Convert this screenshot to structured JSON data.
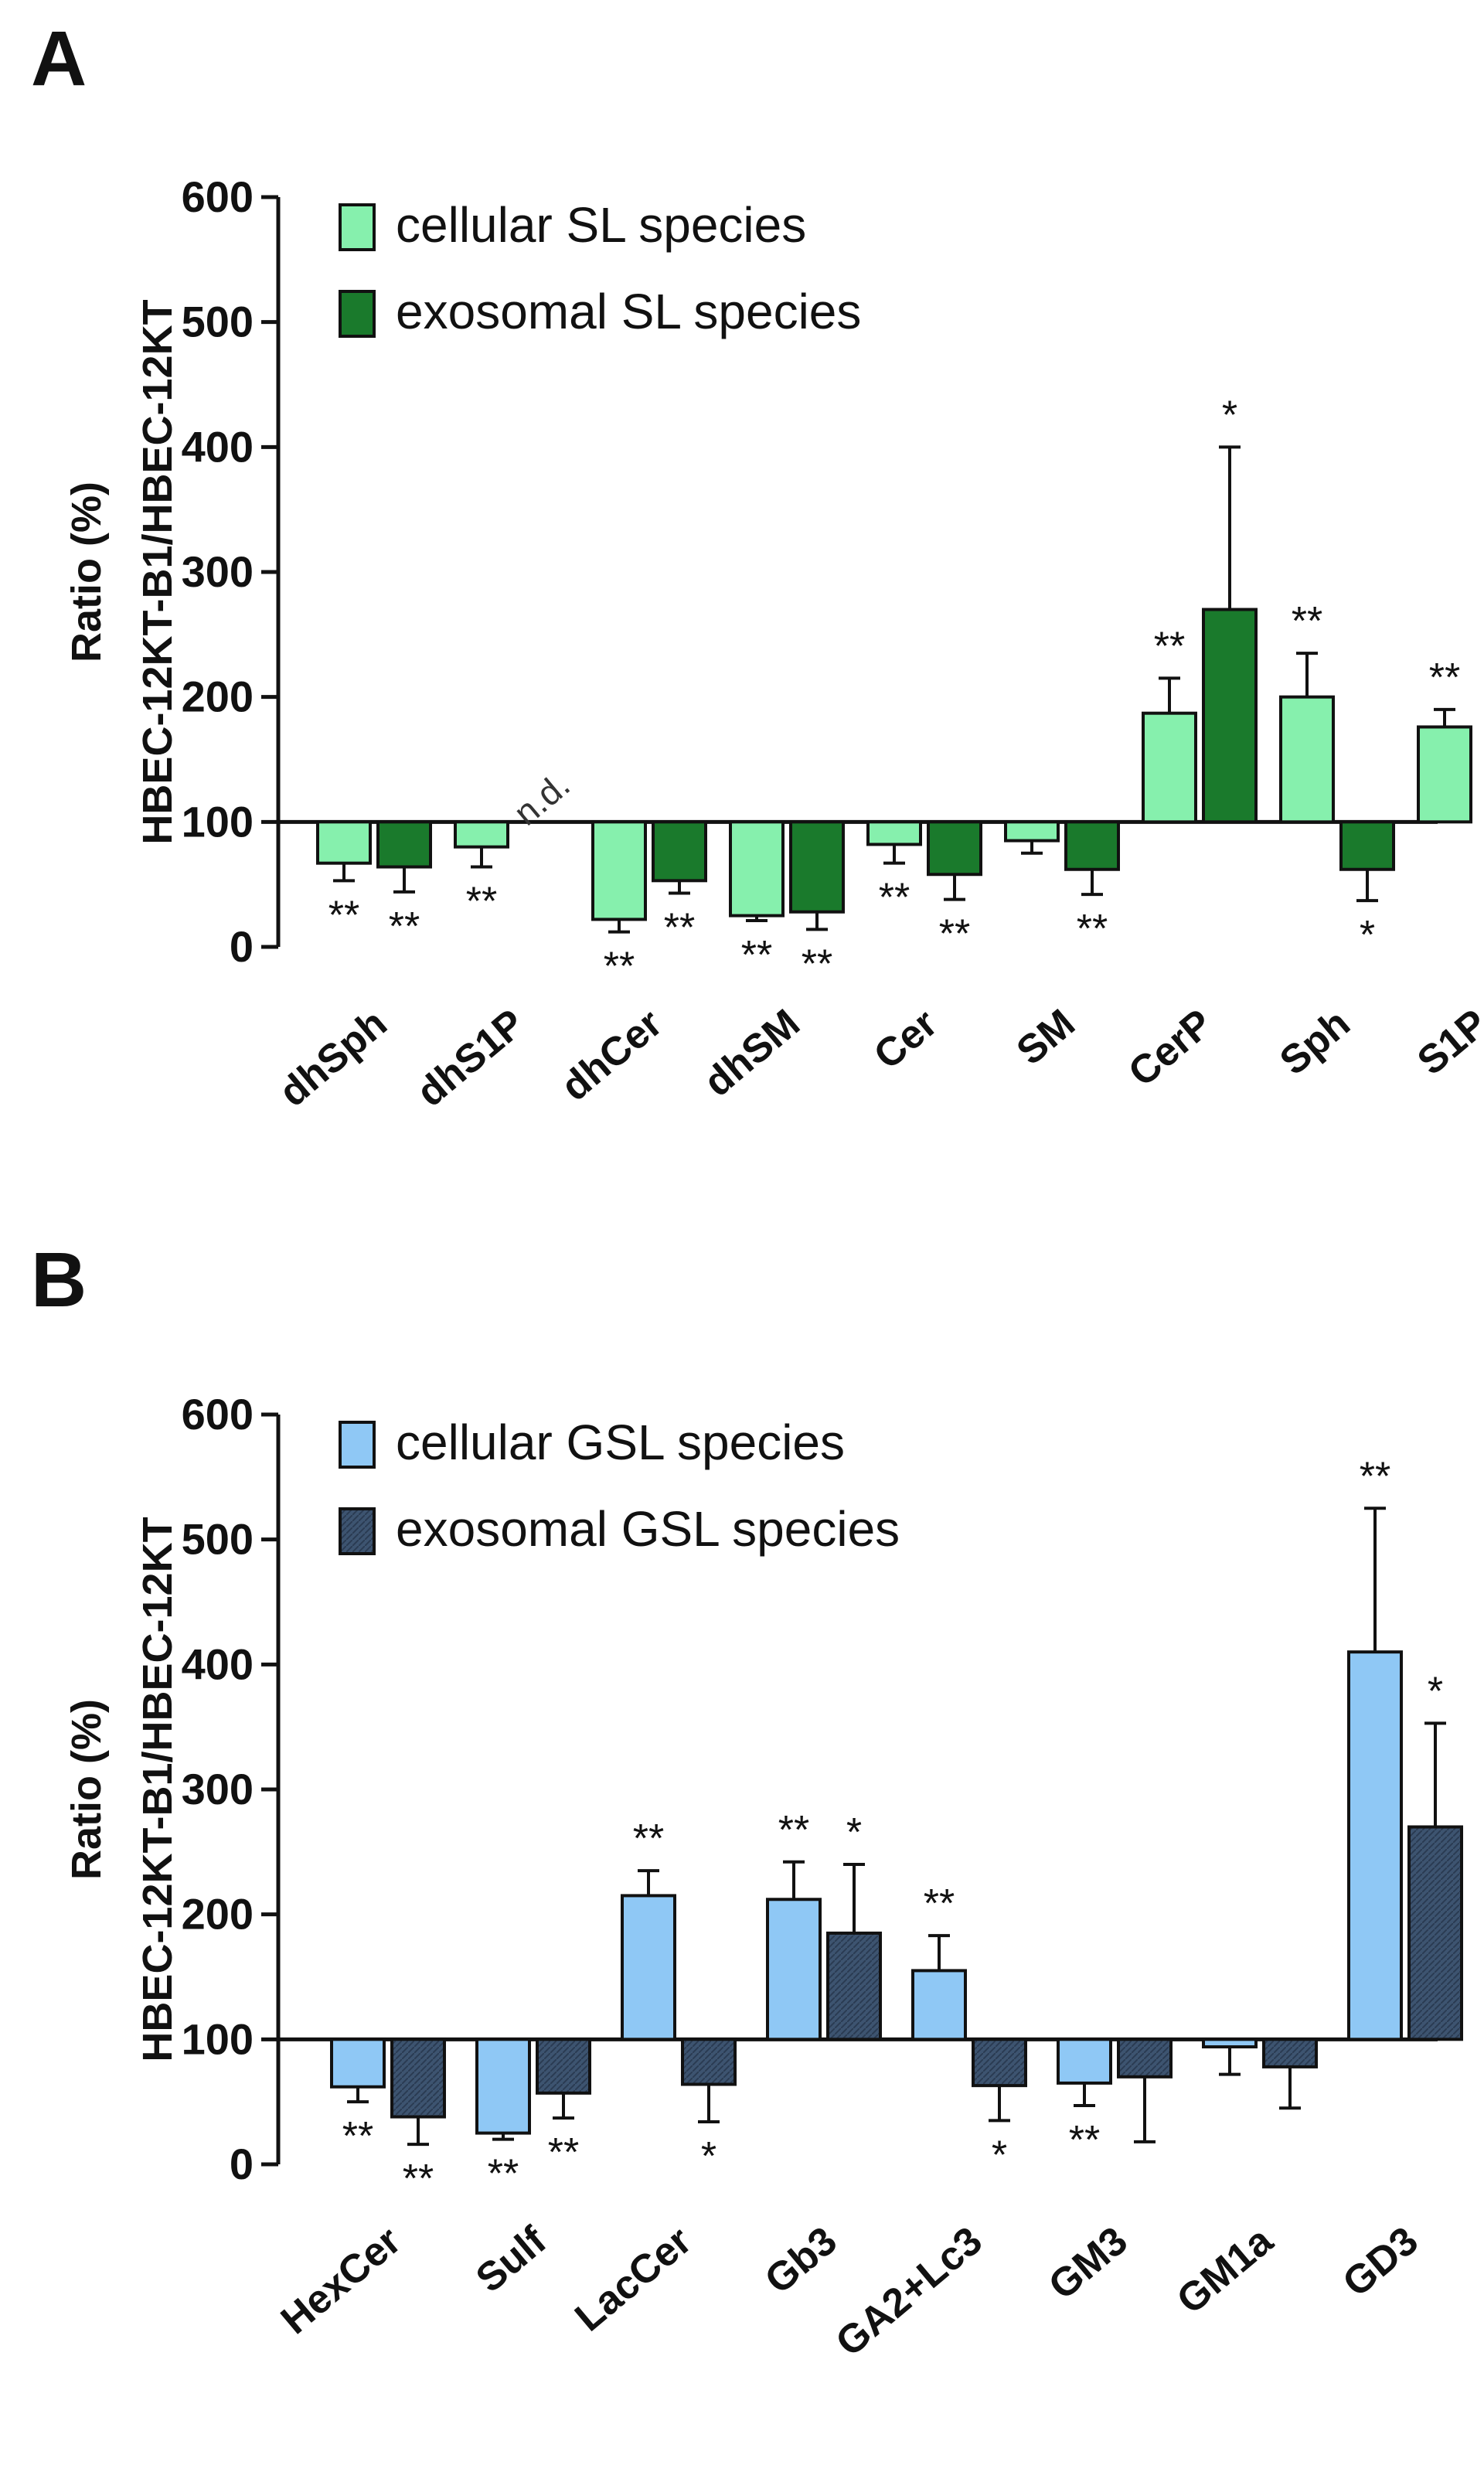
{
  "colors": {
    "cellular_sl": "#86f0ad",
    "exosomal_sl": "#1a7a2c",
    "cellular_gsl": "#8fc8f5",
    "exosomal_gsl": "#3d5470"
  },
  "chart_data": [
    {
      "panel": "A",
      "type": "bar",
      "ylabel": [
        "Ratio (%)",
        "HBEC-12KT-B1/HBEC-12KT"
      ],
      "ylim": [
        0,
        600
      ],
      "yticks": [
        0,
        100,
        200,
        300,
        400,
        500,
        600
      ],
      "baseline": 100,
      "legend_position": "top-left",
      "categories": [
        "dhSph",
        "dhS1P",
        "dhCer",
        "dhSM",
        "Cer",
        "SM",
        "CerP",
        "Sph",
        "S1P"
      ],
      "series": [
        {
          "name": "cellular SL species",
          "values": [
            67,
            80,
            22,
            25,
            82,
            85,
            187,
            200,
            176
          ],
          "errors": [
            14,
            16,
            10,
            4,
            15,
            10,
            28,
            35,
            14
          ],
          "annotations": [
            "**",
            "**",
            "**",
            "**",
            "**",
            "",
            "**",
            "**",
            "**"
          ]
        },
        {
          "name": "exosomal SL species",
          "values": [
            64,
            null,
            53,
            28,
            58,
            62,
            270,
            62,
            null
          ],
          "errors": [
            20,
            null,
            10,
            14,
            20,
            20,
            130,
            25,
            null
          ],
          "annotations": [
            "**",
            "",
            "**",
            "**",
            "**",
            "**",
            "*",
            "*",
            ""
          ],
          "not_detected": [
            "",
            "n.d.",
            "",
            "",
            "",
            "",
            "",
            "",
            ""
          ]
        }
      ]
    },
    {
      "panel": "B",
      "type": "bar",
      "ylabel": [
        "Ratio (%)",
        "HBEC-12KT-B1/HBEC-12KT"
      ],
      "ylim": [
        0,
        600
      ],
      "yticks": [
        0,
        100,
        200,
        300,
        400,
        500,
        600
      ],
      "baseline": 100,
      "legend_position": "top-left",
      "categories": [
        "HexCer",
        "Sulf",
        "LacCer",
        "Gb3",
        "GA2+Lc3",
        "GM3",
        "GM1a",
        "GD3"
      ],
      "series": [
        {
          "name": "cellular GSL species",
          "values": [
            62,
            25,
            215,
            212,
            155,
            65,
            94,
            410
          ],
          "errors": [
            12,
            5,
            20,
            30,
            28,
            18,
            22,
            115
          ],
          "annotations": [
            "**",
            "**",
            "**",
            "**",
            "**",
            "**",
            "",
            "**"
          ]
        },
        {
          "name": "exosomal GSL species",
          "values": [
            38,
            57,
            64,
            185,
            63,
            70,
            78,
            270
          ],
          "errors": [
            22,
            20,
            30,
            55,
            28,
            52,
            33,
            83
          ],
          "annotations": [
            "**",
            "**",
            "*",
            "*",
            "*",
            "",
            "",
            "*"
          ]
        }
      ]
    }
  ]
}
